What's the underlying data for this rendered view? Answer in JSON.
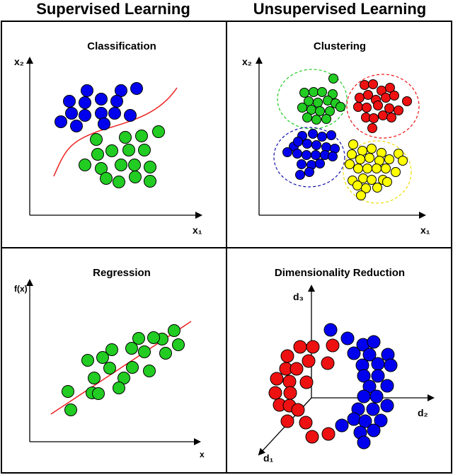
{
  "headers": {
    "left": "Supervised Learning",
    "right": "Unsupervised Learning"
  },
  "panels": {
    "classification": {
      "title": "Classification",
      "x_label": "x₁",
      "y_label": "x₂"
    },
    "clustering": {
      "title": "Clustering",
      "x_label": "x₁",
      "y_label": "x₂"
    },
    "regression": {
      "title": "Regression",
      "x_label": "x",
      "y_label": "f(x)"
    },
    "dimensionality": {
      "title": "Dimensionality Reduction",
      "axis1": "d₁",
      "axis2": "d₂",
      "axis3": "d₃"
    }
  },
  "colors": {
    "blue": "#0000ee",
    "green": "#22cc22",
    "red": "#ee1111",
    "yellow": "#ffff00",
    "boundary": "#ee2222",
    "green_dash": "#22cc22",
    "red_dash": "#ee1111",
    "blue_dash": "#1111aa",
    "yellow_dash": "#eedd00"
  }
}
